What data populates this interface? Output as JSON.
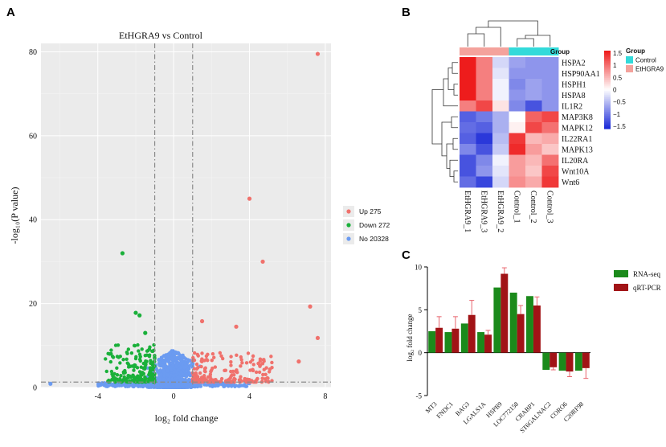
{
  "panels": {
    "a": "A",
    "b": "B",
    "c": "C"
  },
  "colors": {
    "up": "#f0716c",
    "down": "#1ab03a",
    "no": "#6b9bf1",
    "heat_high": "#ee1c1c",
    "heat_mid": "#ffffff",
    "heat_low": "#1c2bd8",
    "group_control": "#33dada",
    "group_ethgra9": "#f4a29c",
    "rna_seq": "#1b8a1b",
    "qrt_pcr": "#a11316",
    "error_bar": "#e8636c"
  },
  "chart_data": [
    {
      "type": "scatter",
      "name": "volcano",
      "title": "EtHGRA9 vs Control",
      "xlabel": "log₂ fold change",
      "ylabel": "-log₁₀(P value)",
      "xlim": [
        -7,
        8.3
      ],
      "ylim": [
        0,
        82
      ],
      "x_ticks": [
        -4,
        0,
        4,
        8
      ],
      "y_ticks": [
        0,
        20,
        40,
        60,
        80
      ],
      "tick_labels_x": [
        "-4",
        "0",
        "4",
        "8"
      ],
      "tick_labels_y": [
        "0",
        "20",
        "40",
        "60",
        "80"
      ],
      "threshold_x": [
        -1,
        1
      ],
      "threshold_y": 1.3,
      "legend": [
        {
          "label": "Up 275",
          "color": "#f0716c"
        },
        {
          "label": "Down 272",
          "color": "#1ab03a"
        },
        {
          "label": "No 20328",
          "color": "#6b9bf1"
        }
      ],
      "highlight_points": {
        "up": [
          [
            7.6,
            79.5
          ],
          [
            4.0,
            45
          ],
          [
            4.7,
            30
          ],
          [
            7.2,
            19.3
          ],
          [
            7.6,
            11.8
          ],
          [
            6.6,
            6.2
          ],
          [
            1.5,
            15.8
          ],
          [
            3.3,
            14.5
          ]
        ],
        "down": [
          [
            -2.7,
            32
          ],
          [
            -2.0,
            17.8
          ],
          [
            -1.8,
            17.2
          ],
          [
            -1.5,
            13
          ]
        ],
        "no": [
          [
            -6.5,
            0.9
          ]
        ]
      }
    },
    {
      "type": "heatmap",
      "name": "expression-heatmap",
      "rows": [
        "HSPA2",
        "HSP90AA1",
        "HSPH1",
        "HSPA8",
        "IL1R2",
        "MAP3K8",
        "MAPK12",
        "IL22RA1",
        "MAPK13",
        "IL20RA",
        "Wnt10A",
        "Wnt6"
      ],
      "columns": [
        "EtHGRA9_1",
        "EtHGRA9_3",
        "EtHGRA9_2",
        "Control_1",
        "Control_2",
        "Control_3"
      ],
      "column_groups": [
        "EtHGRA9",
        "EtHGRA9",
        "EtHGRA9",
        "Control",
        "Control",
        "Control"
      ],
      "values": [
        [
          1.6,
          0.9,
          -0.3,
          -0.7,
          -0.8,
          -0.8
        ],
        [
          1.6,
          0.9,
          -0.2,
          -0.8,
          -0.8,
          -0.8
        ],
        [
          1.6,
          0.9,
          -0.1,
          -0.9,
          -0.7,
          -0.8
        ],
        [
          1.6,
          0.9,
          -0.1,
          -0.8,
          -0.7,
          -0.8
        ],
        [
          0.9,
          1.3,
          0.2,
          -0.9,
          -1.3,
          -0.8
        ],
        [
          -1.2,
          -1.0,
          -0.6,
          0.0,
          1.1,
          1.3
        ],
        [
          -1.1,
          -1.2,
          -0.6,
          0.1,
          1.3,
          1.0
        ],
        [
          -1.2,
          -1.5,
          -0.5,
          1.4,
          0.5,
          0.6
        ],
        [
          -0.9,
          -1.3,
          -0.4,
          1.5,
          0.7,
          0.4
        ],
        [
          -1.3,
          -0.9,
          -0.1,
          0.7,
          0.5,
          1.0
        ],
        [
          -1.3,
          -0.8,
          -0.2,
          0.7,
          0.4,
          1.3
        ],
        [
          -1.1,
          -1.4,
          -0.3,
          0.8,
          0.6,
          1.4
        ]
      ],
      "scale_ticks": [
        "1.5",
        "1",
        "0.5",
        "0",
        "−0.5",
        "−1",
        "−1.5"
      ],
      "group_header": "Group",
      "legend_title": "Group",
      "legend_items": [
        {
          "label": "Control",
          "color": "#33dada"
        },
        {
          "label": "EtHGRA9",
          "color": "#f4a29c"
        }
      ]
    },
    {
      "type": "bar",
      "name": "rnaseq-vs-qrtpcr",
      "categories": [
        "MT3",
        "FNDC1",
        "BAG3",
        "LGALS1A",
        "HSPB9",
        "LOC772158",
        "CRABP1",
        "ST6GALNAC2",
        "CORO6",
        "C20RF98"
      ],
      "ylabel": "log₂ fold change",
      "ylim": [
        -5,
        10
      ],
      "y_ticks": [
        "10",
        "5",
        "0",
        "-5"
      ],
      "series": [
        {
          "name": "RNA-seq",
          "values": [
            2.5,
            2.4,
            3.4,
            2.4,
            7.6,
            7.0,
            6.6,
            -2.0,
            -2.1,
            -2.1
          ],
          "errors": [
            0,
            0,
            0,
            0,
            0,
            0,
            0,
            0,
            0,
            0
          ]
        },
        {
          "name": "qRT-PCR",
          "values": [
            2.9,
            2.8,
            4.4,
            2.1,
            9.2,
            4.5,
            5.5,
            -1.7,
            -2.2,
            -1.8
          ],
          "errors": [
            1.3,
            1.4,
            1.7,
            0.5,
            0.7,
            1.0,
            1.0,
            0.3,
            0.6,
            1.2
          ]
        }
      ]
    }
  ]
}
